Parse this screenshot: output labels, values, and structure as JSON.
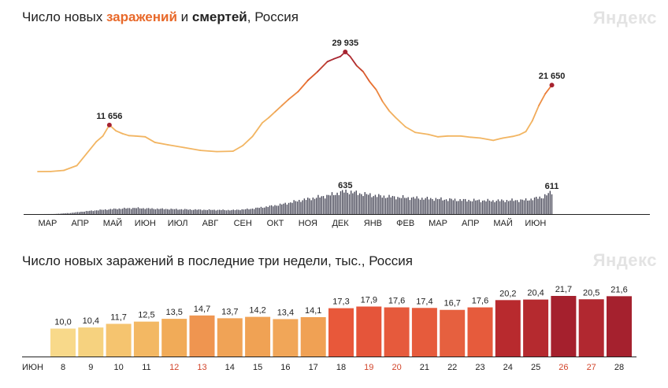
{
  "header1": {
    "prefix": "Число новых ",
    "infections": "заражений",
    "middle": " и ",
    "deaths": "смертей",
    "suffix": ", Россия"
  },
  "header2": {
    "title": "Число новых заражений в последние три недели, тыс., Россия"
  },
  "logo": "Яндекс",
  "colors": {
    "line_low": "#f2b562",
    "line_mid": "#e8692a",
    "line_high": "#a62330",
    "deaths_bars": "#4a4a5a",
    "weekend_label": "#d2452b",
    "tick_label": "#222222"
  },
  "chart_data": [
    {
      "type": "line",
      "id": "infections_and_deaths",
      "months": [
        "МАР",
        "АПР",
        "МАЙ",
        "ИЮН",
        "ИЮЛ",
        "АВГ",
        "СЕН",
        "ОКТ",
        "НОЯ",
        "ДЕК",
        "ЯНВ",
        "ФЕВ",
        "МАР",
        "АПР",
        "МАЙ",
        "ИЮН"
      ],
      "series": [
        {
          "key": "infections",
          "x_month_index": [
            0,
            0.4,
            0.8,
            1.2,
            1.5,
            1.8,
            2.0,
            2.2,
            2.4,
            2.6,
            2.8,
            3.0,
            3.3,
            3.6,
            4.0,
            4.5,
            5.0,
            5.5,
            6.0,
            6.3,
            6.6,
            6.9,
            7.1,
            7.3,
            7.5,
            7.7,
            8.0,
            8.3,
            8.6,
            8.9,
            9.1,
            9.3,
            9.45,
            9.6,
            9.8,
            10.0,
            10.2,
            10.4,
            10.6,
            10.8,
            11.0,
            11.3,
            11.6,
            12.0,
            12.3,
            12.6,
            13.0,
            13.3,
            13.6,
            14.0,
            14.3,
            14.6,
            14.8,
            15.0,
            15.2,
            15.4,
            15.6,
            15.8
          ],
          "values": [
            0,
            30,
            300,
            1500,
            4500,
            7500,
            8900,
            11656,
            10200,
            9500,
            9000,
            8900,
            8700,
            7300,
            6700,
            6000,
            5300,
            5000,
            5100,
            6500,
            8800,
            12200,
            13500,
            15000,
            16500,
            18000,
            20000,
            22800,
            25000,
            27500,
            28200,
            28800,
            29935,
            28800,
            26500,
            25000,
            22500,
            20500,
            17500,
            15200,
            13500,
            11200,
            9800,
            9300,
            8700,
            8900,
            8900,
            8600,
            8400,
            7800,
            8400,
            8800,
            9200,
            10000,
            12700,
            16500,
            19500,
            21650
          ]
        },
        {
          "key": "deaths",
          "x_month_index": [
            0,
            0.5,
            1.0,
            1.5,
            2.0,
            2.5,
            3.0,
            3.5,
            4.0,
            4.5,
            5.0,
            5.5,
            6.0,
            6.5,
            7.0,
            7.5,
            8.0,
            8.5,
            9.0,
            9.45,
            10.0,
            10.5,
            11.0,
            11.5,
            12.0,
            12.5,
            13.0,
            13.5,
            14.0,
            14.5,
            15.0,
            15.5,
            15.8
          ],
          "values": [
            0,
            2,
            30,
            80,
            120,
            150,
            170,
            150,
            140,
            130,
            120,
            115,
            110,
            140,
            200,
            270,
            370,
            450,
            530,
            635,
            560,
            500,
            470,
            450,
            430,
            410,
            390,
            380,
            370,
            380,
            390,
            470,
            611
          ]
        }
      ],
      "annotations": [
        {
          "series": "infections",
          "x_month_index": 2.2,
          "value": 11656,
          "label": "11 656"
        },
        {
          "series": "infections",
          "x_month_index": 9.45,
          "value": 29935,
          "label": "29 935"
        },
        {
          "series": "infections",
          "x_month_index": 15.8,
          "value": 21650,
          "label": "21 650"
        },
        {
          "series": "deaths",
          "x_month_index": 9.45,
          "value": 635,
          "label": "635"
        },
        {
          "series": "deaths",
          "x_month_index": 15.8,
          "value": 611,
          "label": "611"
        }
      ]
    },
    {
      "type": "bar",
      "id": "last_three_weeks",
      "month_label": "ИЮН",
      "categories": [
        "8",
        "9",
        "10",
        "11",
        "12",
        "13",
        "14",
        "15",
        "16",
        "17",
        "18",
        "19",
        "20",
        "21",
        "22",
        "23",
        "24",
        "25",
        "26",
        "27",
        "28"
      ],
      "values": [
        10.0,
        10.4,
        11.7,
        12.5,
        13.5,
        14.7,
        13.7,
        14.2,
        13.4,
        14.1,
        17.3,
        17.9,
        17.6,
        17.4,
        16.7,
        17.6,
        20.2,
        20.4,
        21.7,
        20.5,
        21.6
      ],
      "labels": [
        "10,0",
        "10,4",
        "11,7",
        "12,5",
        "13,5",
        "14,7",
        "13,7",
        "14,2",
        "13,4",
        "14,1",
        "17,3",
        "17,9",
        "17,6",
        "17,4",
        "16,7",
        "17,6",
        "20,2",
        "20,4",
        "21,7",
        "20,5",
        "21,6"
      ],
      "weekend": [
        false,
        false,
        false,
        false,
        true,
        true,
        false,
        false,
        false,
        false,
        false,
        true,
        true,
        false,
        false,
        false,
        false,
        false,
        true,
        true,
        false
      ],
      "bar_colors": [
        "#f8d98a",
        "#f6d27f",
        "#f5c46f",
        "#f3b863",
        "#f1ab58",
        "#ef9550",
        "#f0a356",
        "#f0a254",
        "#f1a658",
        "#f0a154",
        "#e8583a",
        "#e5553a",
        "#e65a3c",
        "#e65b3c",
        "#e6603f",
        "#e65b3c",
        "#b82a2e",
        "#b52a2f",
        "#a5202d",
        "#b12830",
        "#a5212e"
      ]
    }
  ]
}
